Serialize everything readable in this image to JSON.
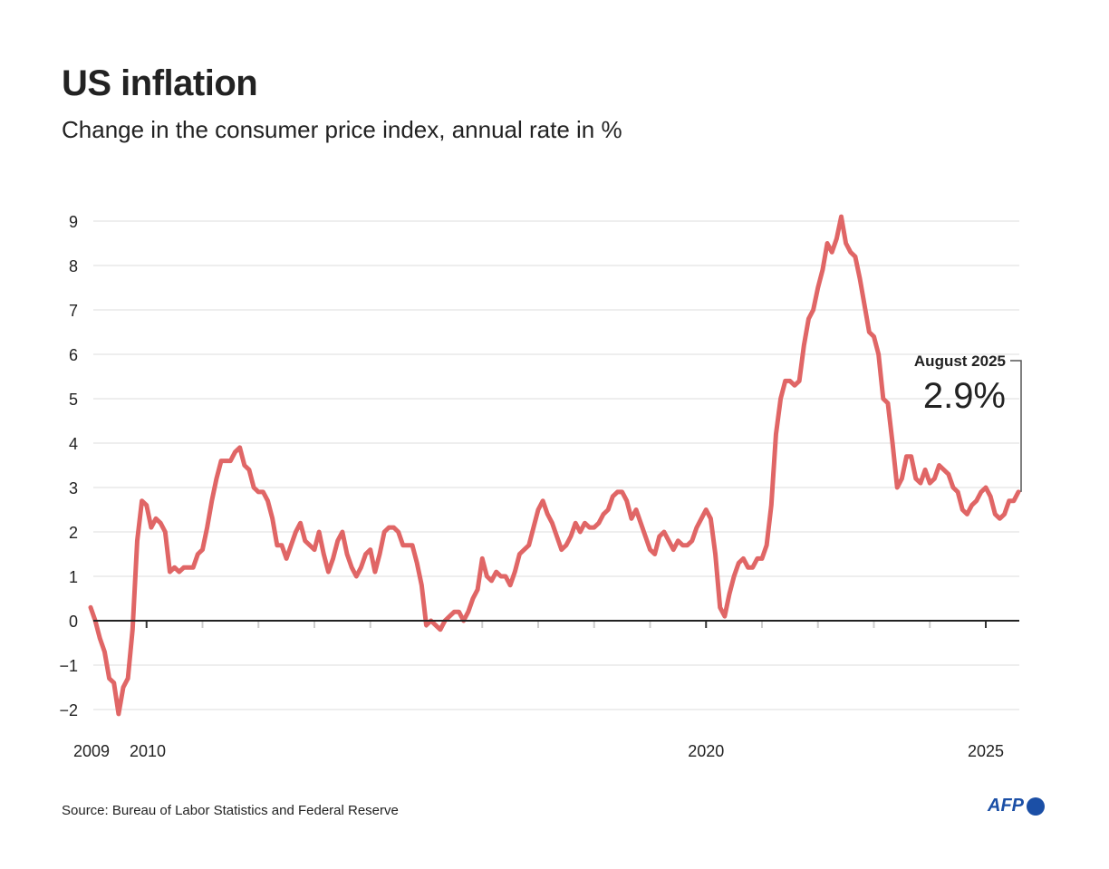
{
  "chart_data": {
    "type": "line",
    "title": "US inflation",
    "subtitle": "Change in the consumer price index, annual rate in %",
    "xlabel": "",
    "ylabel": "",
    "ylim": [
      -2,
      9
    ],
    "yticks": [
      -2,
      -1,
      0,
      1,
      2,
      3,
      4,
      5,
      6,
      7,
      8,
      9
    ],
    "ytick_labels": [
      "−2",
      "−1",
      "0",
      "1",
      "2",
      "3",
      "4",
      "5",
      "6",
      "7",
      "8",
      "9"
    ],
    "xlim": [
      "2009-01",
      "2025-08"
    ],
    "xtick_labels": [
      "2009",
      "2010",
      "2020",
      "2025"
    ],
    "grid": true,
    "line_color": "#e06666",
    "start": "2009-01",
    "frequency": "monthly",
    "values": [
      0.3,
      0.0,
      -0.4,
      -0.7,
      -1.3,
      -1.4,
      -2.1,
      -1.5,
      -1.3,
      -0.2,
      1.8,
      2.7,
      2.6,
      2.1,
      2.3,
      2.2,
      2.0,
      1.1,
      1.2,
      1.1,
      1.2,
      1.2,
      1.2,
      1.5,
      1.6,
      2.1,
      2.7,
      3.2,
      3.6,
      3.6,
      3.6,
      3.8,
      3.9,
      3.5,
      3.4,
      3.0,
      2.9,
      2.9,
      2.7,
      2.3,
      1.7,
      1.7,
      1.4,
      1.7,
      2.0,
      2.2,
      1.8,
      1.7,
      1.6,
      2.0,
      1.5,
      1.1,
      1.4,
      1.8,
      2.0,
      1.5,
      1.2,
      1.0,
      1.2,
      1.5,
      1.6,
      1.1,
      1.5,
      2.0,
      2.1,
      2.1,
      2.0,
      1.7,
      1.7,
      1.7,
      1.3,
      0.8,
      -0.1,
      0.0,
      -0.1,
      -0.2,
      0.0,
      0.1,
      0.2,
      0.2,
      0.0,
      0.2,
      0.5,
      0.7,
      1.4,
      1.0,
      0.9,
      1.1,
      1.0,
      1.0,
      0.8,
      1.1,
      1.5,
      1.6,
      1.7,
      2.1,
      2.5,
      2.7,
      2.4,
      2.2,
      1.9,
      1.6,
      1.7,
      1.9,
      2.2,
      2.0,
      2.2,
      2.1,
      2.1,
      2.2,
      2.4,
      2.5,
      2.8,
      2.9,
      2.9,
      2.7,
      2.3,
      2.5,
      2.2,
      1.9,
      1.6,
      1.5,
      1.9,
      2.0,
      1.8,
      1.6,
      1.8,
      1.7,
      1.7,
      1.8,
      2.1,
      2.3,
      2.5,
      2.3,
      1.5,
      0.3,
      0.1,
      0.6,
      1.0,
      1.3,
      1.4,
      1.2,
      1.2,
      1.4,
      1.4,
      1.7,
      2.6,
      4.2,
      5.0,
      5.4,
      5.4,
      5.3,
      5.4,
      6.2,
      6.8,
      7.0,
      7.5,
      7.9,
      8.5,
      8.3,
      8.6,
      9.1,
      8.5,
      8.3,
      8.2,
      7.7,
      7.1,
      6.5,
      6.4,
      6.0,
      5.0,
      4.9,
      4.0,
      3.0,
      3.2,
      3.7,
      3.7,
      3.2,
      3.1,
      3.4,
      3.1,
      3.2,
      3.5,
      3.4,
      3.3,
      3.0,
      2.9,
      2.5,
      2.4,
      2.6,
      2.7,
      2.9,
      3.0,
      2.8,
      2.4,
      2.3,
      2.4,
      2.7,
      2.7,
      2.9
    ],
    "annotation": {
      "label": "August 2025",
      "value": "2.9%"
    }
  },
  "source": "Source: Bureau of Labor Statistics and Federal Reserve",
  "logo": "AFP"
}
